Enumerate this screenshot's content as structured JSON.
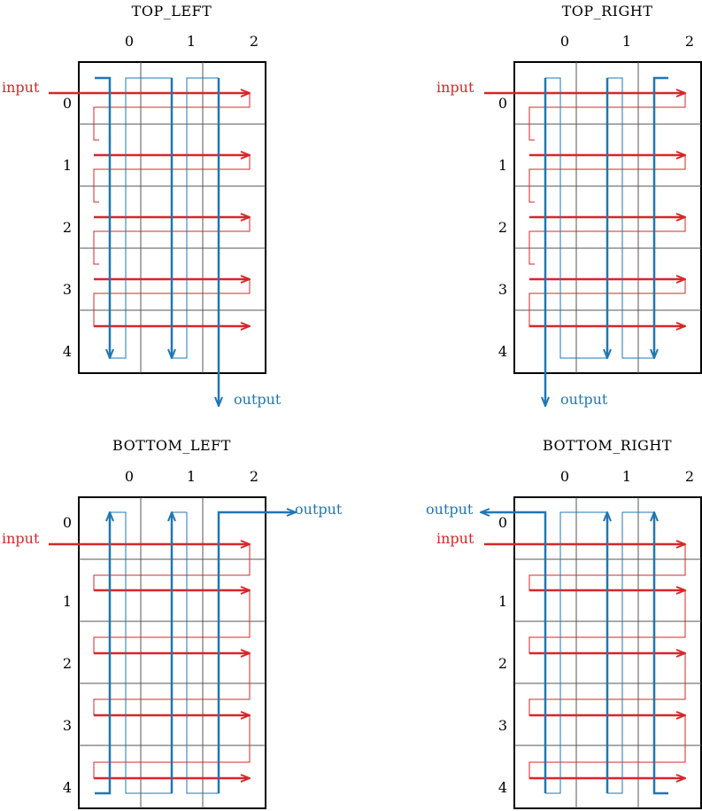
{
  "colors": {
    "input_path": "#d62728",
    "output_path": "#1f77b4",
    "grid_border": "#000000",
    "grid_lines": "#555555"
  },
  "panels": [
    {
      "title": "TOP_LEFT",
      "col_labels": [
        "0",
        "1",
        "2"
      ],
      "row_labels": [
        "0",
        "1",
        "2",
        "3",
        "4"
      ],
      "input_label": "input",
      "output_label": "output"
    },
    {
      "title": "TOP_RIGHT",
      "col_labels": [
        "0",
        "1",
        "2"
      ],
      "row_labels": [
        "0",
        "1",
        "2",
        "3",
        "4"
      ],
      "input_label": "input",
      "output_label": "output"
    },
    {
      "title": "BOTTOM_LEFT",
      "col_labels": [
        "0",
        "1",
        "2"
      ],
      "row_labels": [
        "0",
        "1",
        "2",
        "3",
        "4"
      ],
      "input_label": "input",
      "output_label": "output"
    },
    {
      "title": "BOTTOM_RIGHT",
      "col_labels": [
        "0",
        "1",
        "2"
      ],
      "row_labels": [
        "0",
        "1",
        "2",
        "3",
        "4"
      ],
      "input_label": "input",
      "output_label": "output"
    }
  ]
}
